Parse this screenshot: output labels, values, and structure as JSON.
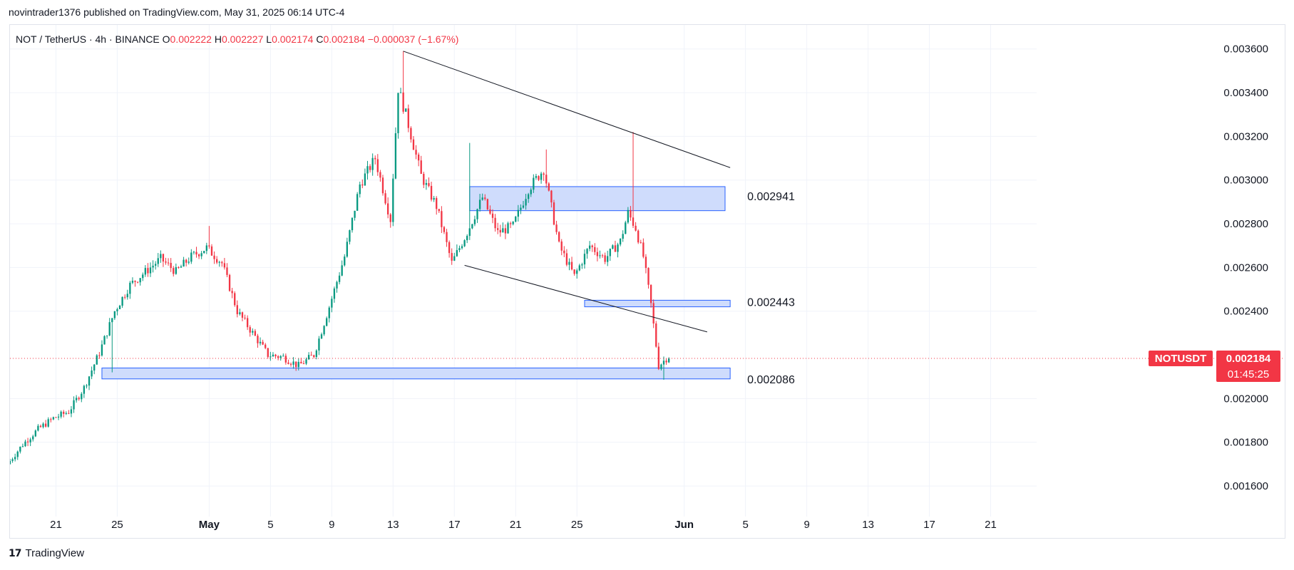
{
  "header": {
    "published": "novintrader1376 published on TradingView.com, May 31, 2025 06:14 UTC-4"
  },
  "footer": {
    "brand": "TradingView"
  },
  "colors": {
    "up": "#089981",
    "down": "#f23645",
    "zone_fill": "#cfdcfc",
    "zone_stroke": "#2962ff",
    "grid": "#f0f3fa",
    "text": "#131722"
  },
  "chart_data": {
    "type": "candlestick",
    "legend": {
      "symbol": "NOT / TetherUS · 4h · BINANCE",
      "o_label": "O",
      "o": "0.002222",
      "h_label": "H",
      "h": "0.002227",
      "l_label": "L",
      "l": "0.002174",
      "c_label": "C",
      "c": "0.002184",
      "change": "−0.000037 (−1.67%)"
    },
    "x_axis": {
      "start": "2025-04-18",
      "end": "2025-06-24",
      "ticks": [
        {
          "date": "2025-04-21",
          "label": "21"
        },
        {
          "date": "2025-04-25",
          "label": "25"
        },
        {
          "date": "2025-05-01",
          "label": "May",
          "bold": true
        },
        {
          "date": "2025-05-05",
          "label": "5"
        },
        {
          "date": "2025-05-09",
          "label": "9"
        },
        {
          "date": "2025-05-13",
          "label": "13"
        },
        {
          "date": "2025-05-17",
          "label": "17"
        },
        {
          "date": "2025-05-21",
          "label": "21"
        },
        {
          "date": "2025-05-25",
          "label": "25"
        },
        {
          "date": "2025-06-01",
          "label": "Jun",
          "bold": true
        },
        {
          "date": "2025-06-05",
          "label": "5"
        },
        {
          "date": "2025-06-09",
          "label": "9"
        },
        {
          "date": "2025-06-13",
          "label": "13"
        },
        {
          "date": "2025-06-17",
          "label": "17"
        },
        {
          "date": "2025-06-21",
          "label": "21"
        }
      ]
    },
    "y_axis": {
      "min": 0.00146,
      "max": 0.00371,
      "ticks": [
        "0.003600",
        "0.003400",
        "0.003200",
        "0.003000",
        "0.002800",
        "0.002600",
        "0.002400",
        "0.002000",
        "0.001800",
        "0.001600"
      ]
    },
    "price_path": [
      [
        "2025-04-18",
        0.0017
      ],
      [
        "2025-04-19",
        0.00179
      ],
      [
        "2025-04-20",
        0.00186
      ],
      [
        "2025-04-21",
        0.00191
      ],
      [
        "2025-04-22",
        0.00194
      ],
      [
        "2025-04-23",
        0.00205
      ],
      [
        "2025-04-24",
        0.00221
      ],
      [
        "2025-04-25",
        0.0024
      ],
      [
        "2025-04-26",
        0.00252
      ],
      [
        "2025-04-27",
        0.00258
      ],
      [
        "2025-04-28",
        0.00264
      ],
      [
        "2025-04-29",
        0.00258
      ],
      [
        "2025-04-30",
        0.00265
      ],
      [
        "2025-05-01",
        0.00269
      ],
      [
        "2025-05-02",
        0.00262
      ],
      [
        "2025-05-03",
        0.0024
      ],
      [
        "2025-05-04",
        0.0023
      ],
      [
        "2025-05-05",
        0.0022
      ],
      [
        "2025-05-06",
        0.00219
      ],
      [
        "2025-05-07",
        0.00215
      ],
      [
        "2025-05-08",
        0.0022
      ],
      [
        "2025-05-09",
        0.00242
      ],
      [
        "2025-05-10",
        0.00265
      ],
      [
        "2025-05-11",
        0.00298
      ],
      [
        "2025-05-12",
        0.0031
      ],
      [
        "2025-05-13",
        0.00282
      ],
      [
        "2025-05-13T12",
        0.00342
      ],
      [
        "2025-05-14",
        0.0033
      ],
      [
        "2025-05-15",
        0.00302
      ],
      [
        "2025-05-16",
        0.00288
      ],
      [
        "2025-05-17",
        0.00262
      ],
      [
        "2025-05-18",
        0.00276
      ],
      [
        "2025-05-19",
        0.00292
      ],
      [
        "2025-05-20",
        0.00276
      ],
      [
        "2025-05-21",
        0.00279
      ],
      [
        "2025-05-22",
        0.00296
      ],
      [
        "2025-05-23",
        0.00305
      ],
      [
        "2025-05-24",
        0.0027
      ],
      [
        "2025-05-25",
        0.00256
      ],
      [
        "2025-05-26",
        0.0027
      ],
      [
        "2025-05-27",
        0.00264
      ],
      [
        "2025-05-28",
        0.00272
      ],
      [
        "2025-05-28T12",
        0.00285
      ],
      [
        "2025-05-29",
        0.00278
      ],
      [
        "2025-05-29T12",
        0.00265
      ],
      [
        "2025-05-30",
        0.00243
      ],
      [
        "2025-05-30T12",
        0.00215
      ],
      [
        "2025-05-31",
        0.002184
      ]
    ],
    "pivots": [
      {
        "date": "2025-04-24T16",
        "low": 0.00212
      },
      {
        "date": "2025-05-01",
        "high": 0.00279
      },
      {
        "date": "2025-05-13T16",
        "high": 0.00359
      },
      {
        "date": "2025-05-18",
        "high": 0.00317
      },
      {
        "date": "2025-05-23",
        "high": 0.00314
      },
      {
        "date": "2025-05-28T16",
        "high": 0.00322
      },
      {
        "date": "2025-05-30T16",
        "low": 0.002086
      }
    ],
    "trendlines": [
      {
        "name": "upper",
        "from": [
          "2025-05-13T16",
          0.00359
        ],
        "to": [
          "2025-06-04",
          0.003057
        ]
      },
      {
        "name": "lower",
        "from": [
          "2025-05-17T16",
          0.00261
        ],
        "to": [
          "2025-06-02T12",
          0.002305
        ]
      }
    ],
    "zones": [
      {
        "from": "2025-05-18",
        "to": "2025-06-03T16",
        "top": 0.00297,
        "bottom": 0.00286,
        "label": "0.002941"
      },
      {
        "from": "2025-05-25T12",
        "to": "2025-06-04",
        "top": 0.00245,
        "bottom": 0.00242,
        "label": "0.002443"
      },
      {
        "from": "2025-04-24",
        "to": "2025-06-04",
        "top": 0.00214,
        "bottom": 0.00209,
        "label": "0.002086"
      }
    ],
    "last_price": {
      "value": 0.002184,
      "symbol": "NOTUSDT",
      "label": "0.002184",
      "countdown": "01:45:25"
    }
  }
}
